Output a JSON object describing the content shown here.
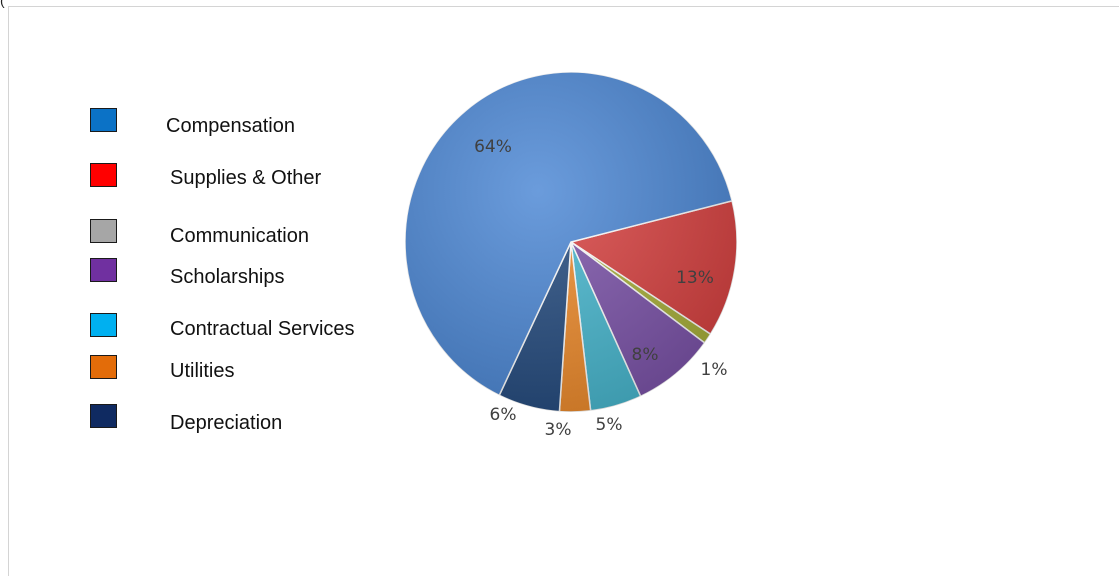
{
  "top_fragment": "(",
  "chart_data": {
    "type": "pie",
    "categories": [
      "Compensation",
      "Supplies & Other",
      "Communication",
      "Scholarships",
      "Contractual Services",
      "Utilities",
      "Depreciation"
    ],
    "values": [
      64,
      13,
      1,
      8,
      5,
      3,
      6
    ],
    "data_labels": [
      "64%",
      "13%",
      "1%",
      "8%",
      "5%",
      "3%",
      "6%"
    ],
    "colors": [
      "#4a86d4",
      "#d8403f",
      "#a8b038",
      "#7b52a9",
      "#46b7cf",
      "#ee8a2a",
      "#22497d"
    ],
    "legend_colors": [
      "#0b72c6",
      "#ff0000",
      "#a6a6a6",
      "#7030a0",
      "#00b0f0",
      "#e36c09",
      "#0f2a61"
    ],
    "legend_position": "left"
  }
}
